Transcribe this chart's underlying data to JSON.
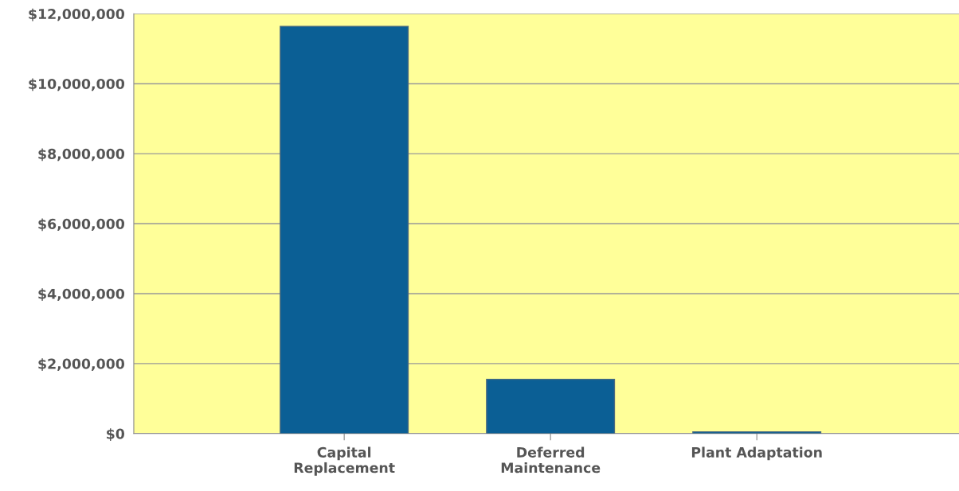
{
  "chart_data": {
    "type": "bar",
    "categories": [
      "Capital\nReplacement",
      "Deferred\nMaintenance",
      "Plant Adaptation"
    ],
    "values": [
      11640000,
      1550000,
      50000
    ],
    "color": "#0b5f95",
    "ylim": [
      0,
      12000000
    ],
    "yticks": [
      {
        "value": 0,
        "label": "$0"
      },
      {
        "value": 2000000,
        "label": "$2,000,000"
      },
      {
        "value": 4000000,
        "label": "$4,000,000"
      },
      {
        "value": 6000000,
        "label": "$6,000,000"
      },
      {
        "value": 8000000,
        "label": "$8,000,000"
      },
      {
        "value": 10000000,
        "label": "$10,000,000"
      },
      {
        "value": 12000000,
        "label": "$12,000,000"
      }
    ],
    "grid": "y",
    "legend": false
  }
}
